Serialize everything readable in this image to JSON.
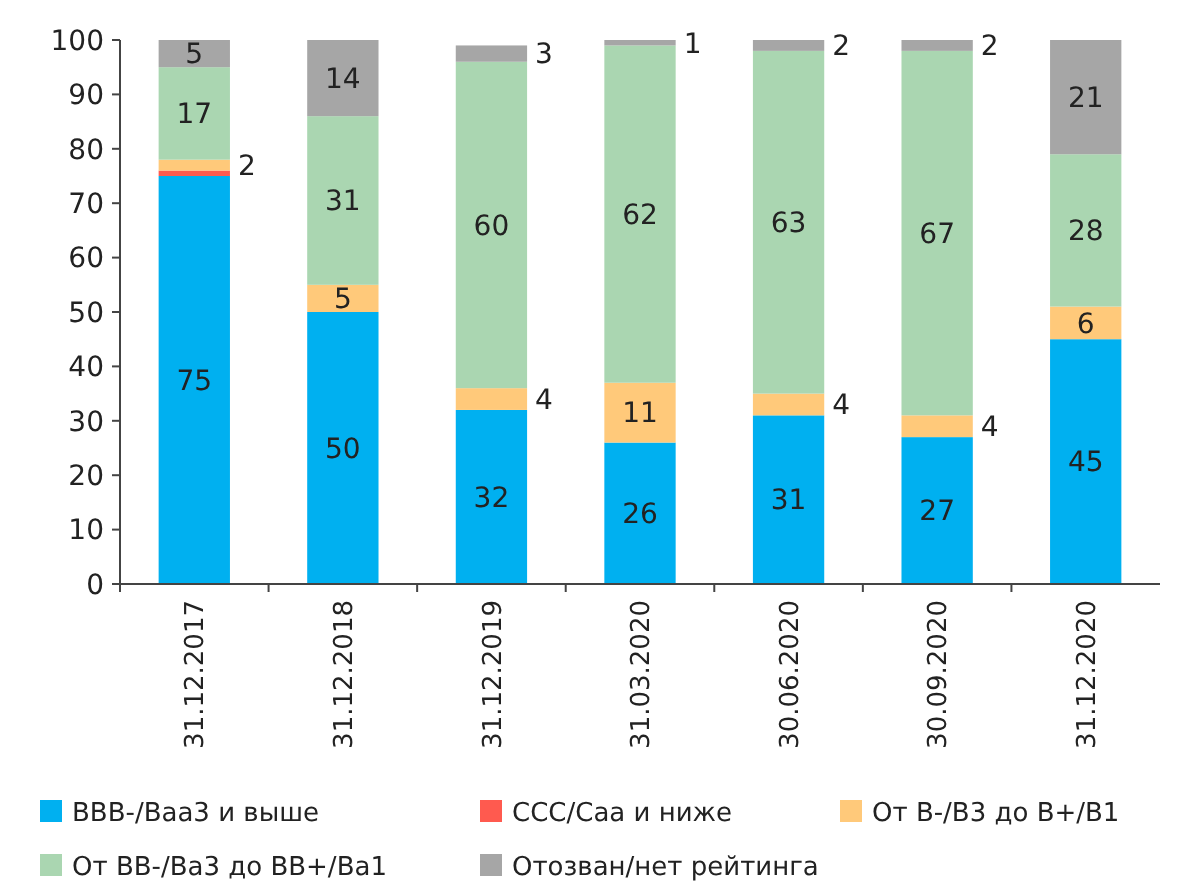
{
  "chart_data": {
    "type": "bar",
    "stacked": true,
    "categories": [
      "31.12.2017",
      "31.12.2018",
      "31.12.2019",
      "31.03.2020",
      "30.06.2020",
      "30.09.2020",
      "31.12.2020"
    ],
    "series": [
      {
        "name": "BBB-/Baa3 и выше",
        "color": "#00b0f0",
        "values": [
          75,
          50,
          32,
          26,
          31,
          27,
          45
        ],
        "value_labels": [
          "75",
          "50",
          "32",
          "26",
          "31",
          "27",
          "45"
        ]
      },
      {
        "name": "CCC/Caa и ниже",
        "color": "#ff5a4f",
        "values": [
          1,
          0,
          0,
          0,
          0,
          0,
          0
        ],
        "value_labels": [
          null,
          null,
          null,
          null,
          null,
          null,
          null
        ]
      },
      {
        "name": "От B-/B3 до B+/B1",
        "color": "#ffc97a",
        "values": [
          2,
          5,
          4,
          11,
          4,
          4,
          6
        ],
        "value_labels": [
          "2",
          "5",
          "4",
          "11",
          "4",
          "4",
          "6"
        ]
      },
      {
        "name": "От BB-/Ba3 до BB+/Ba1",
        "color": "#aad6b1",
        "values": [
          17,
          31,
          60,
          62,
          63,
          67,
          28
        ],
        "value_labels": [
          "17",
          "31",
          "60",
          "62",
          "63",
          "67",
          "28"
        ]
      },
      {
        "name": "Отозван/нет рейтинга",
        "color": "#a6a6a6",
        "values": [
          5,
          14,
          3,
          1,
          2,
          2,
          21
        ],
        "value_labels": [
          "5",
          "14",
          "3",
          "1",
          "2",
          "2",
          "21"
        ]
      }
    ],
    "ylim": [
      0,
      100
    ],
    "yticks": [
      0,
      10,
      20,
      30,
      40,
      50,
      60,
      70,
      80,
      90,
      100
    ],
    "legend": "bottom"
  }
}
